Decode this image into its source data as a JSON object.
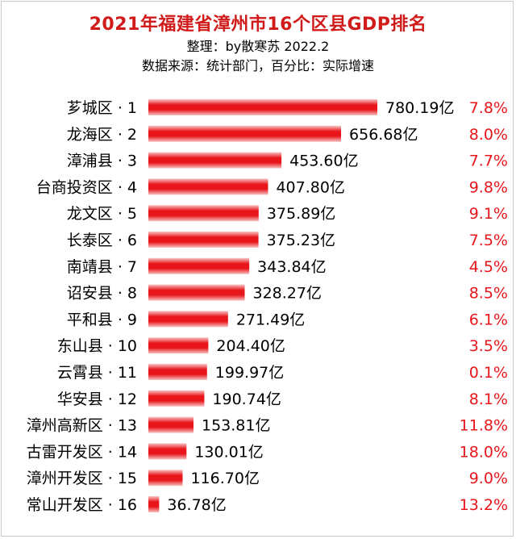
{
  "header": {
    "title": "2021年福建省漳州市16个区县GDP排名",
    "compiler": "整理：by散寒苏 2022.2",
    "source": "数据来源：统计部门，百分比：实际增速"
  },
  "colors": {
    "title": "#d11a1a",
    "bar_core": "#e8161b",
    "bar_edge": "#f7c4c4",
    "rate_text": "#e8161b"
  },
  "chart_data": {
    "type": "bar",
    "orientation": "horizontal",
    "value_unit": "亿",
    "categories": [
      "芗城区 · 1",
      "龙海区 · 2",
      "漳浦县 · 3",
      "台商投资区 · 4",
      "龙文区 · 5",
      "长泰区 · 6",
      "南靖县 · 7",
      "诏安县 · 8",
      "平和县 · 9",
      "东山县 · 10",
      "云霄县 · 11",
      "华安县 · 12",
      "漳州高新区 · 13",
      "古雷开发区 · 14",
      "漳州开发区 · 15",
      "常山开发区 · 16"
    ],
    "series": [
      {
        "values": [
          780.19,
          656.68,
          453.6,
          407.8,
          375.89,
          375.23,
          343.84,
          328.27,
          271.49,
          204.4,
          199.97,
          190.74,
          153.81,
          130.01,
          116.7,
          36.78
        ],
        "value_labels": [
          "780.19亿",
          "656.68亿",
          "453.60亿",
          "407.80亿",
          "375.89亿",
          "375.23亿",
          "343.84亿",
          "328.27亿",
          "271.49亿",
          "204.40亿",
          "199.97亿",
          "190.74亿",
          "153.81亿",
          "130.01亿",
          "116.70亿",
          "36.78亿"
        ]
      }
    ],
    "growth_rates": [
      "7.8%",
      "8.0%",
      "7.7%",
      "9.8%",
      "9.1%",
      "7.5%",
      "4.5%",
      "8.5%",
      "6.1%",
      "3.5%",
      "0.1%",
      "8.1%",
      "11.8%",
      "18.0%",
      "9.0%",
      "13.2%"
    ],
    "xlim": [
      0,
      780.19
    ],
    "grid": false,
    "legend": "none"
  }
}
